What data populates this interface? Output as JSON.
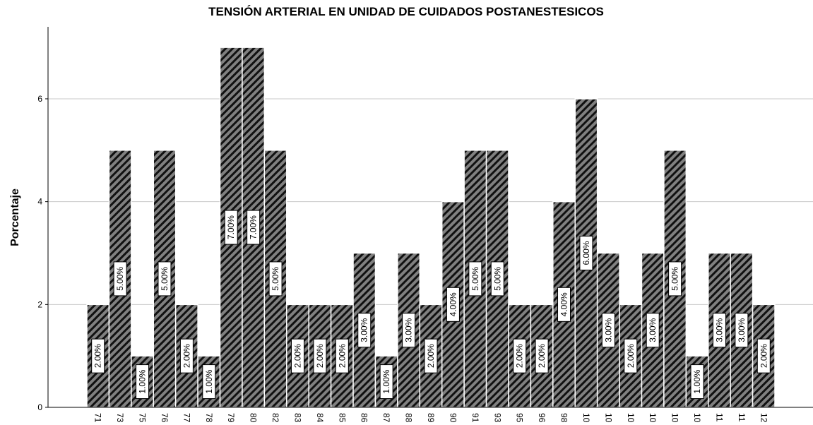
{
  "chart_data": {
    "type": "bar",
    "title": "TENSIÓN ARTERIAL EN UNIDAD DE CUIDADOS POSTANESTESICOS",
    "y_label": "Porcentaje",
    "categories": [
      "71",
      "73",
      "75",
      "76",
      "77",
      "78",
      "79",
      "80",
      "82",
      "83",
      "84",
      "85",
      "86",
      "87",
      "88",
      "89",
      "90",
      "91",
      "93",
      "95",
      "96",
      "98",
      "10",
      "10",
      "10",
      "10",
      "10",
      "10",
      "11",
      "11",
      "12"
    ],
    "values": [
      2,
      5,
      1,
      5,
      2,
      1,
      7,
      7,
      5,
      2,
      2,
      2,
      3,
      1,
      3,
      2,
      4,
      5,
      5,
      2,
      2,
      4,
      6,
      3,
      2,
      3,
      5,
      1,
      3,
      3,
      2
    ],
    "value_labels": [
      "2.00%",
      "5.00%",
      "1.00%",
      "5.00%",
      "2.00%",
      "1.00%",
      "7.00%",
      "7.00%",
      "5.00%",
      "2.00%",
      "2.00%",
      "2.00%",
      "3.00%",
      "1.00%",
      "3.00%",
      "2.00%",
      "4.00%",
      "5.00%",
      "5.00%",
      "2.00%",
      "2.00%",
      "4.00%",
      "6.00%",
      "3.00%",
      "2.00%",
      "3.00%",
      "5.00%",
      "1.00%",
      "3.00%",
      "3.00%",
      "2.00%"
    ],
    "color": "#808080",
    "ylim": [
      0,
      7.4
    ],
    "yticks": [
      0,
      2,
      4,
      6
    ],
    "grid": true
  }
}
